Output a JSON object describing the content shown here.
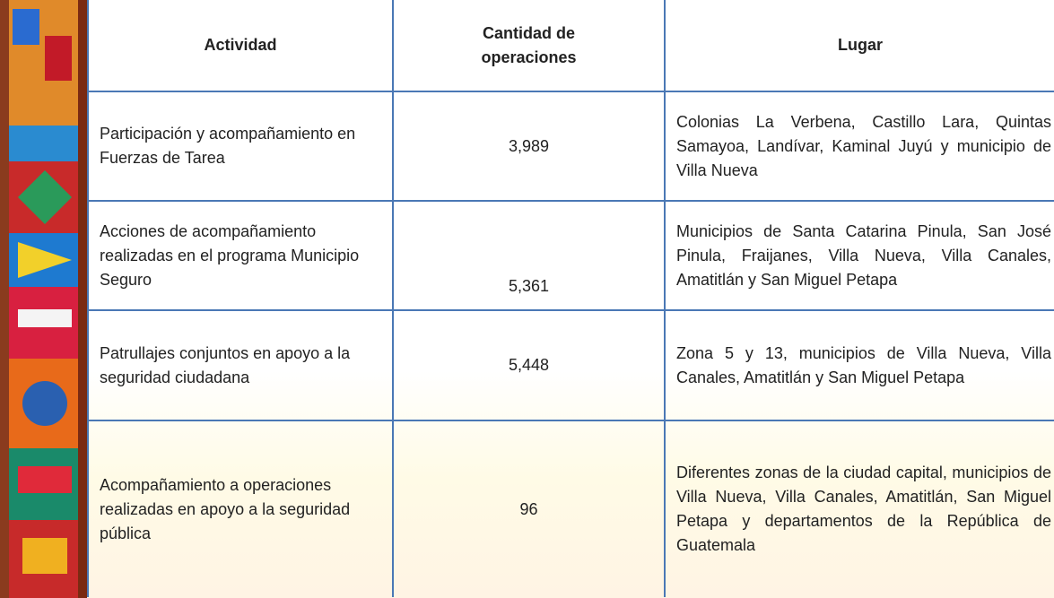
{
  "table": {
    "header": [
      "Actividad",
      "Cantidad de operaciones",
      "Lugar"
    ],
    "rows": [
      [
        "Participación y acompañamiento en Fuerzas de Tarea",
        "3,989",
        "Colonias La Verbena, Castillo Lara, Quintas Samayoa, Landívar, Kaminal Juyú y municipio de Villa Nueva"
      ],
      [
        "Acciones de acompañamiento realizadas en el programa Municipio Seguro",
        "5,361",
        "Municipios de Santa Catarina Pinula, San José Pinula, Fraijanes, Villa Nueva, Villa Canales, Amatitlán y San Miguel Petapa"
      ],
      [
        "Patrullajes conjuntos en apoyo a la seguridad ciudadana",
        "5,448",
        "Zona 5 y 13, municipios de Villa Nueva, Villa Canales, Amatitlán y San Miguel Petapa"
      ],
      [
        "Acompañamiento a operaciones realizadas en apoyo a la seguridad pública",
        "96",
        "Diferentes zonas de la ciudad capital, municipios de Villa Nueva, Villa Canales, Amatitlán, San Miguel Petapa y departamentos de la República de Guatemala"
      ]
    ]
  }
}
